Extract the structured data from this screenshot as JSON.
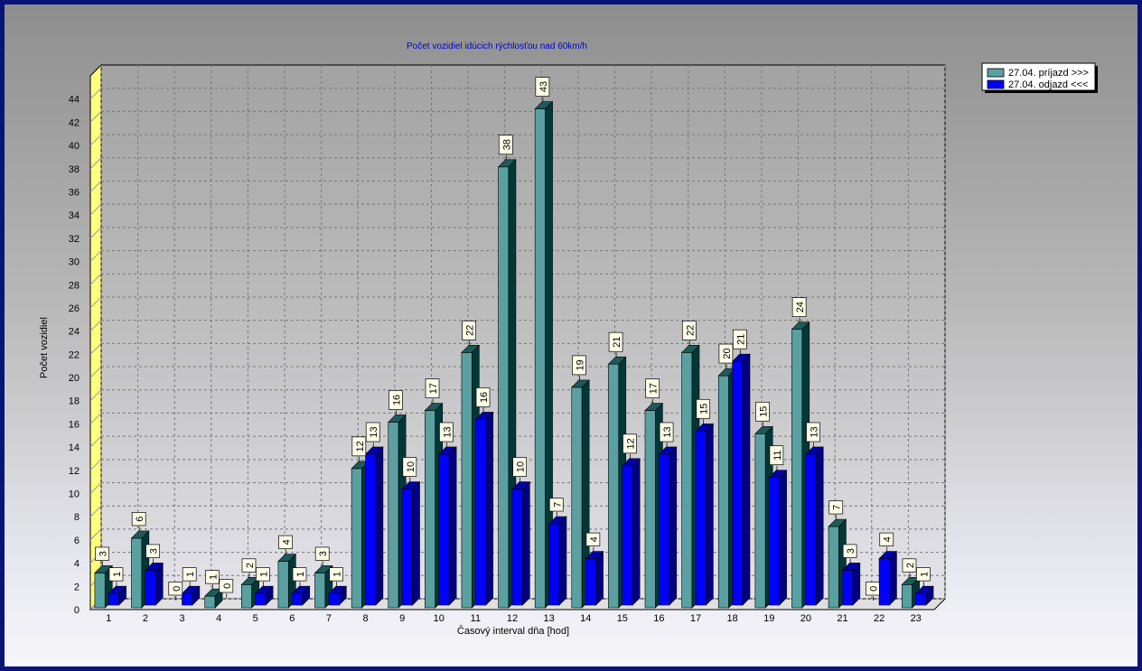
{
  "chart_data": {
    "type": "bar",
    "title": "Počet vozidiel idúcich rýchlosťou nad 60km/h",
    "xlabel": "Časový interval dňa [hod]",
    "ylabel": "Počet vozidiel",
    "ylim": [
      0,
      46
    ],
    "yticks": [
      0,
      2,
      4,
      6,
      8,
      10,
      12,
      14,
      16,
      18,
      20,
      22,
      24,
      26,
      28,
      30,
      32,
      34,
      36,
      38,
      40,
      42,
      44
    ],
    "categories": [
      "1",
      "2",
      "3",
      "4",
      "5",
      "6",
      "7",
      "8",
      "9",
      "10",
      "11",
      "12",
      "13",
      "14",
      "15",
      "16",
      "17",
      "18",
      "19",
      "20",
      "21",
      "22",
      "23"
    ],
    "series": [
      {
        "name": "27.04.  príjazd >>>",
        "color": "#5aa0a0",
        "side_color": "#003838",
        "top_color": "#1e5a5a",
        "values": [
          3,
          6,
          0,
          1,
          2,
          4,
          3,
          12,
          16,
          17,
          22,
          38,
          43,
          19,
          21,
          17,
          22,
          20,
          15,
          24,
          7,
          0,
          2
        ]
      },
      {
        "name": "27.04.  odjazd <<<",
        "color": "#0000ff",
        "side_color": "#000080",
        "top_color": "#0000b0",
        "values": [
          1,
          3,
          1,
          0,
          1,
          1,
          1,
          13,
          10,
          13,
          16,
          10,
          7,
          4,
          12,
          13,
          15,
          21,
          11,
          13,
          3,
          4,
          1
        ]
      }
    ],
    "grid": true,
    "legend_position": "top-right"
  }
}
